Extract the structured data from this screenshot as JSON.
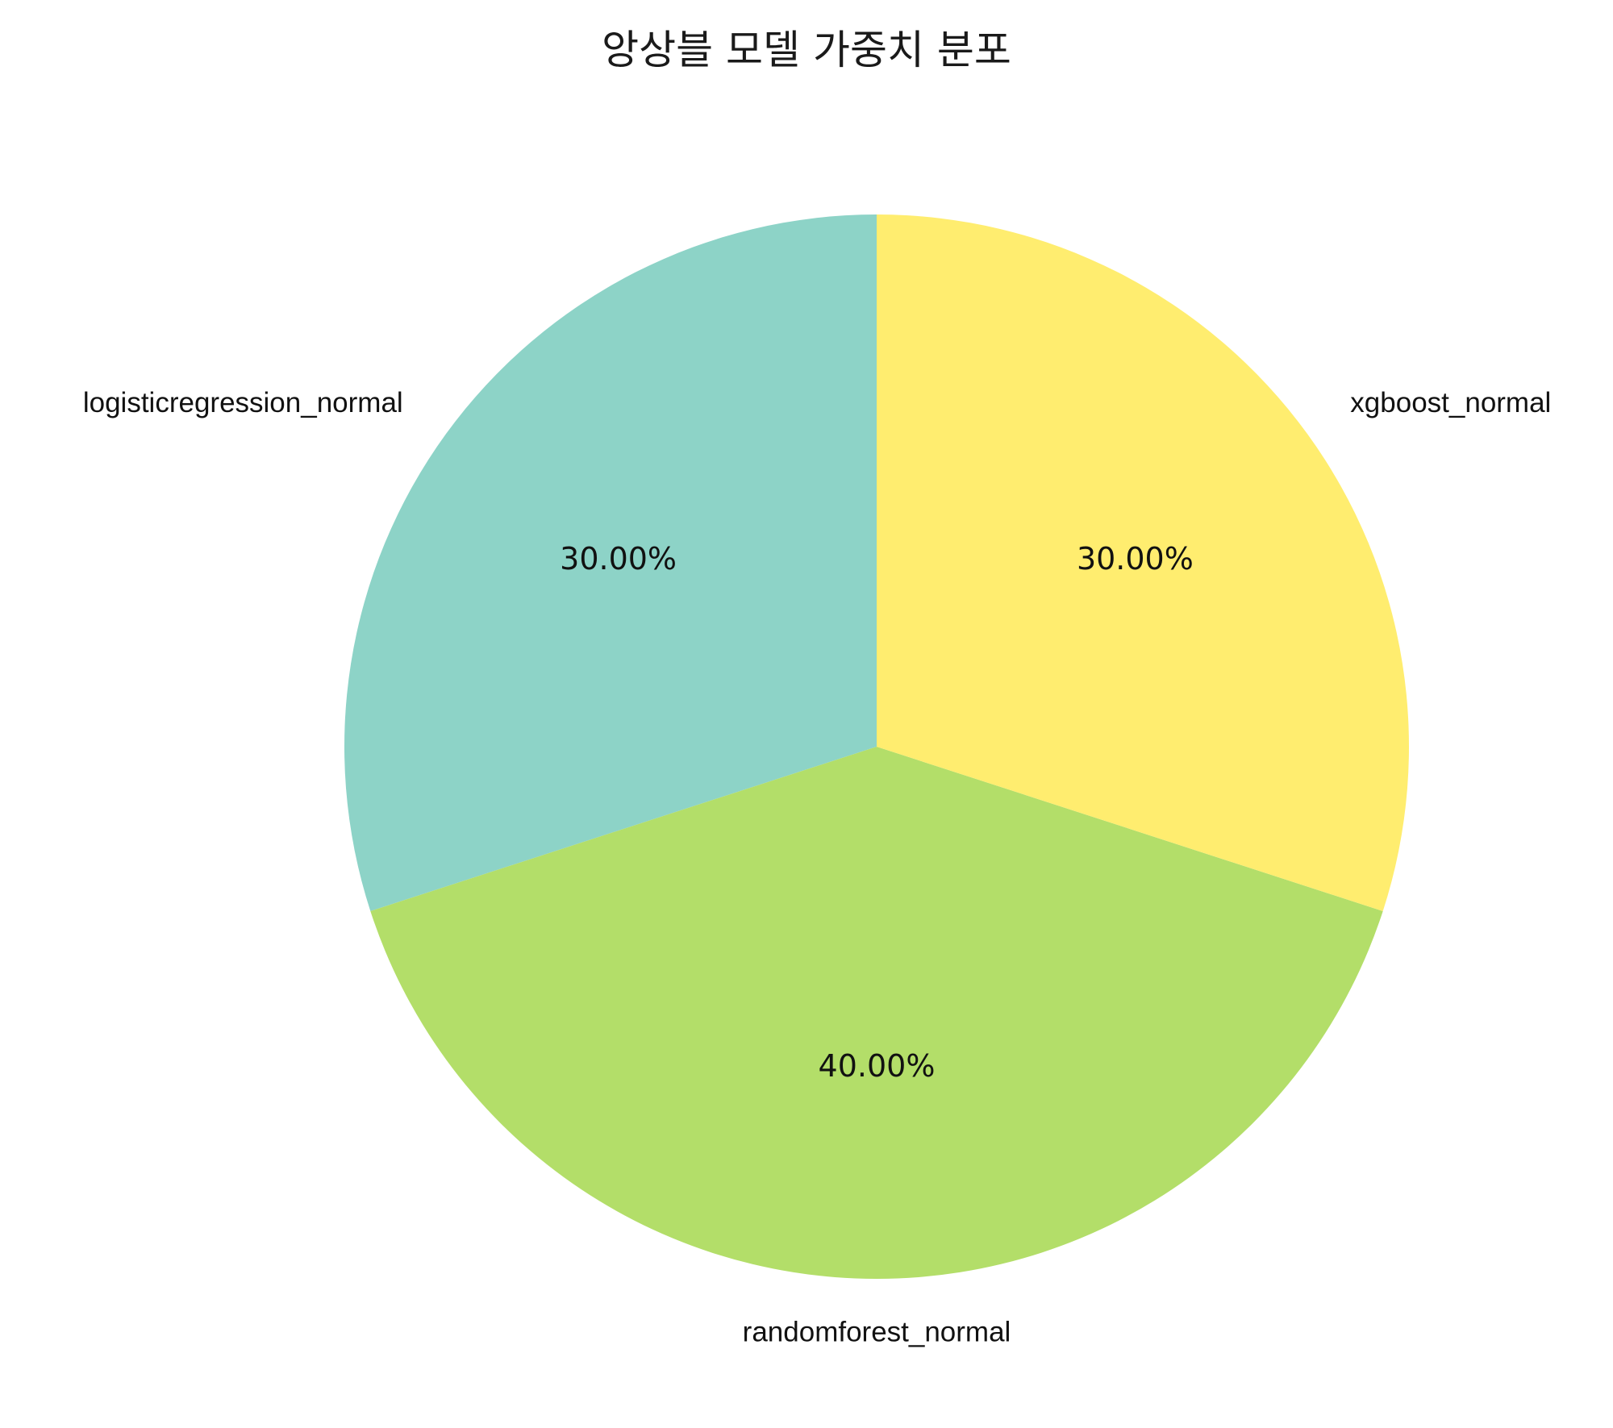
{
  "chart_data": {
    "type": "pie",
    "title": "앙상블 모델 가중치 분포",
    "categories": [
      "logisticregression_normal",
      "randomforest_normal",
      "xgboost_normal"
    ],
    "values": [
      30.0,
      40.0,
      30.0
    ],
    "value_labels": [
      "30.00%",
      "40.00%",
      "30.00%"
    ],
    "colors": [
      "#8dd3c7",
      "#b3de69",
      "#ffed6f"
    ],
    "start_angle_deg": 90,
    "direction": "counterclockwise",
    "legend": "none"
  }
}
